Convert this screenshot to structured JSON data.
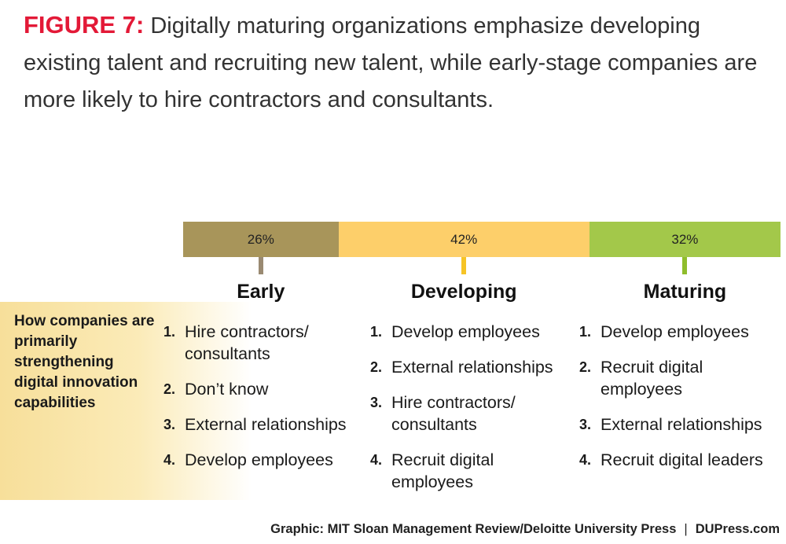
{
  "title": {
    "label": "FIGURE 7:",
    "text": "Digitally maturing organizations emphasize developing existing talent and recruiting new talent, while early-stage companies are more likely to hire contractors and consultants."
  },
  "chart_data": {
    "type": "bar",
    "orientation": "horizontal-stacked",
    "categories": [
      "Early",
      "Developing",
      "Maturing"
    ],
    "values": [
      26,
      42,
      32
    ],
    "value_labels": [
      "26%",
      "42%",
      "32%"
    ],
    "colors": [
      "#a8955a",
      "#fdcf6a",
      "#a3c84a"
    ],
    "tick_colors": [
      "#9a8a72",
      "#f6c426",
      "#8fbd2c"
    ],
    "row_label": "How companies are primarily strengthening digital innovation capabilities",
    "lists": [
      [
        "Hire contractors/ consultants",
        "Don’t know",
        "External relationships",
        "Develop employees"
      ],
      [
        "Develop employees",
        "External relationships",
        "Hire contractors/ consultants",
        "Recruit digital employees"
      ],
      [
        "Develop employees",
        "Recruit digital employees",
        "External relationships",
        "Recruit digital leaders"
      ]
    ]
  },
  "source": {
    "credit": "Graphic: MIT Sloan Management Review/Deloitte University Press",
    "separator": "|",
    "site": "DUPress.com"
  }
}
